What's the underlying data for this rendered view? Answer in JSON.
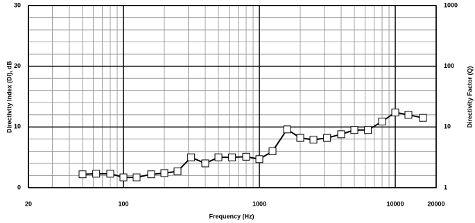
{
  "chart_data": {
    "type": "line",
    "x_label": "Frequency (Hz)",
    "y_label": "Directivity Index (DI), dB",
    "y2_label": "Directivity Factor (Q)",
    "xscale": "log",
    "xlim": [
      20,
      20000
    ],
    "xticks": [
      20,
      100,
      1000,
      10000,
      20000
    ],
    "xminor_ticks": [
      30,
      40,
      50,
      60,
      70,
      80,
      90,
      200,
      300,
      400,
      500,
      600,
      700,
      800,
      900,
      2000,
      3000,
      4000,
      5000,
      6000,
      7000,
      8000,
      9000
    ],
    "ylim": [
      0,
      30
    ],
    "yticks": [
      0,
      10,
      20,
      30
    ],
    "yminor_ticks": [
      2,
      4,
      6,
      8,
      12,
      14,
      16,
      18,
      22,
      24,
      26,
      28
    ],
    "y2scale": "log",
    "y2lim": [
      1,
      1000
    ],
    "y2ticks": [
      1,
      10,
      100,
      1000
    ],
    "grid": true,
    "x": [
      50,
      63,
      80,
      100,
      125,
      160,
      200,
      250,
      315,
      400,
      500,
      630,
      800,
      1000,
      1250,
      1600,
      2000,
      2500,
      3150,
      4000,
      5000,
      6300,
      8000,
      10000,
      12500,
      16000
    ],
    "series": [
      {
        "name": "DI",
        "color": "#000000",
        "marker": "square",
        "values": [
          2.2,
          2.3,
          2.3,
          1.7,
          1.7,
          2.2,
          2.4,
          2.7,
          5.0,
          4.0,
          5.0,
          5.0,
          5.1,
          4.7,
          6.0,
          9.6,
          8.2,
          7.9,
          8.2,
          8.8,
          9.5,
          9.5,
          10.9,
          12.4,
          12.0,
          11.5
        ]
      }
    ]
  }
}
